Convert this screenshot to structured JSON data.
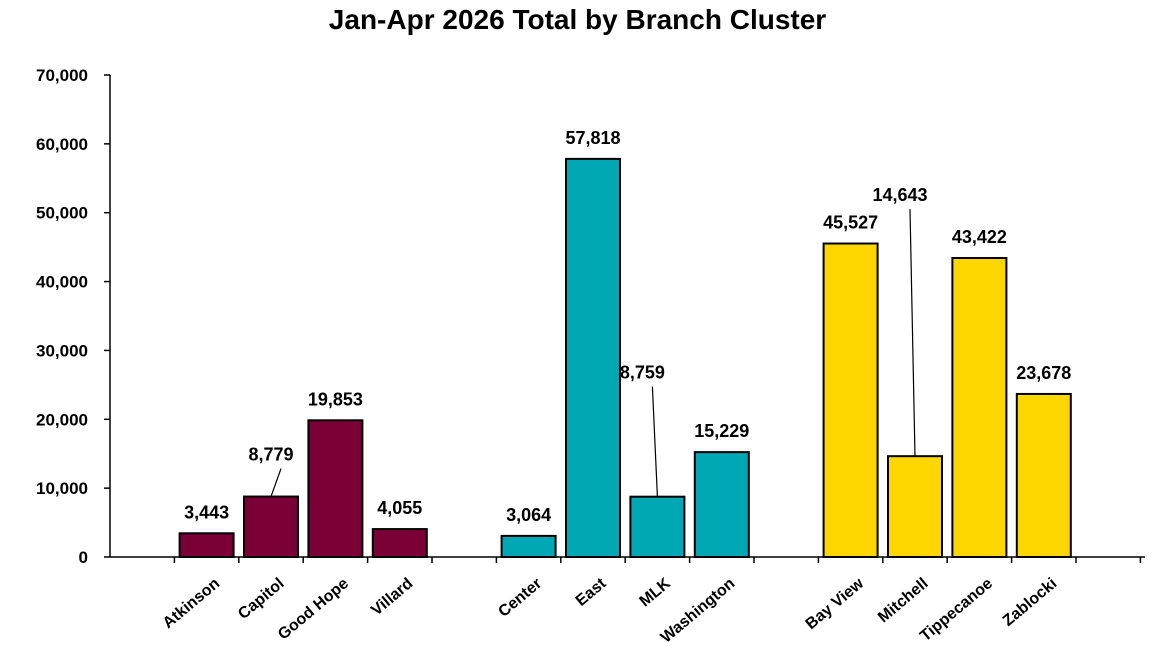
{
  "chart_data": {
    "type": "bar",
    "title": "Jan-Apr 2026 Total by Branch Cluster",
    "xlabel": "",
    "ylabel": "",
    "ylim": [
      0,
      70000
    ],
    "yticks": [
      "0",
      "10,000",
      "20,000",
      "30,000",
      "40,000",
      "50,000",
      "60,000",
      "70,000"
    ],
    "grid": false,
    "legend": "none",
    "groups": [
      {
        "color": "#7a0036",
        "bars": [
          {
            "category": "Atkinson",
            "value": 3443,
            "label": "3,443"
          },
          {
            "category": "Capitol",
            "value": 8779,
            "label": "8,779"
          },
          {
            "category": "Good Hope",
            "value": 19853,
            "label": "19,853"
          },
          {
            "category": "Villard",
            "value": 4055,
            "label": "4,055"
          }
        ]
      },
      {
        "color": "#00a8b5",
        "bars": [
          {
            "category": "Center",
            "value": 3064,
            "label": "3,064"
          },
          {
            "category": "East",
            "value": 57818,
            "label": "57,818"
          },
          {
            "category": "MLK",
            "value": 8759,
            "label": "8,759"
          },
          {
            "category": "Washington",
            "value": 15229,
            "label": "15,229"
          }
        ]
      },
      {
        "color": "#ffd700",
        "bars": [
          {
            "category": "Bay View",
            "value": 45527,
            "label": "45,527"
          },
          {
            "category": "Mitchell",
            "value": 14643,
            "label": "14,643"
          },
          {
            "category": "Tippecanoe",
            "value": 43422,
            "label": "43,422"
          },
          {
            "category": "Zablocki",
            "value": 23678,
            "label": "23,678"
          }
        ]
      }
    ]
  }
}
